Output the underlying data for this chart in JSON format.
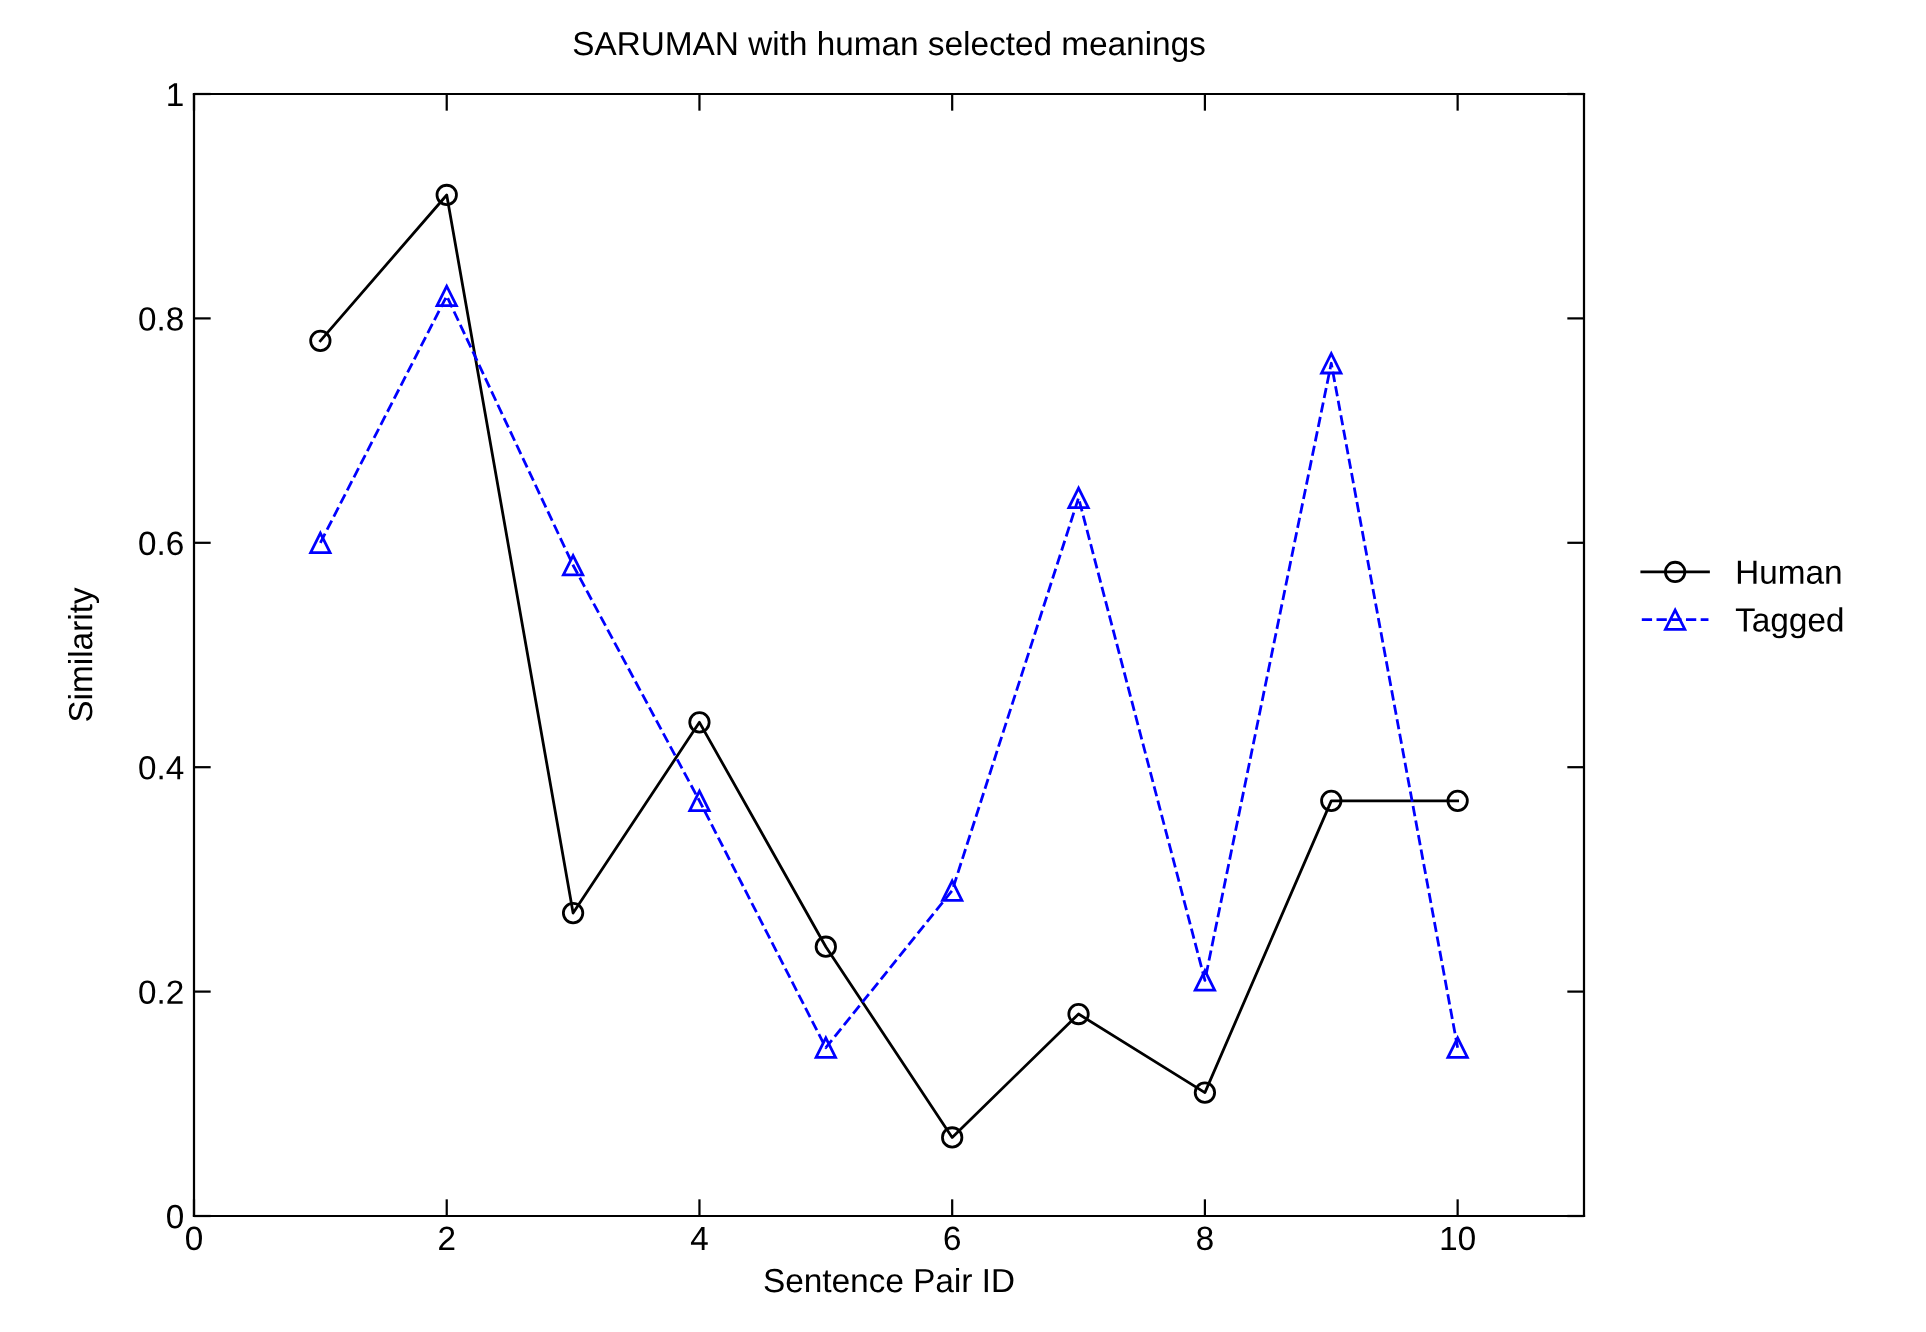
{
  "chart_data": {
    "type": "line",
    "title": "SARUMAN with human selected meanings",
    "xlabel": "Sentence Pair ID",
    "ylabel": "Similarity",
    "x": [
      1,
      2,
      3,
      4,
      5,
      6,
      7,
      8,
      9,
      10
    ],
    "series": [
      {
        "name": "Human",
        "color": "#000000",
        "marker": "circle",
        "line_style": "solid",
        "values": [
          0.78,
          0.91,
          0.27,
          0.44,
          0.24,
          0.07,
          0.18,
          0.11,
          0.37,
          0.37
        ]
      },
      {
        "name": "Tagged",
        "color": "#0000ff",
        "marker": "triangle",
        "line_style": "dashed",
        "values": [
          0.6,
          0.82,
          0.58,
          0.37,
          0.15,
          0.29,
          0.64,
          0.21,
          0.76,
          0.15
        ]
      }
    ],
    "xlim": [
      0,
      11
    ],
    "xticks": [
      0,
      2,
      4,
      6,
      8,
      10
    ],
    "ylim": [
      0,
      1
    ],
    "yticks": [
      0,
      0.2,
      0.4,
      0.6,
      0.8,
      1
    ],
    "grid": false,
    "legend": "right"
  }
}
